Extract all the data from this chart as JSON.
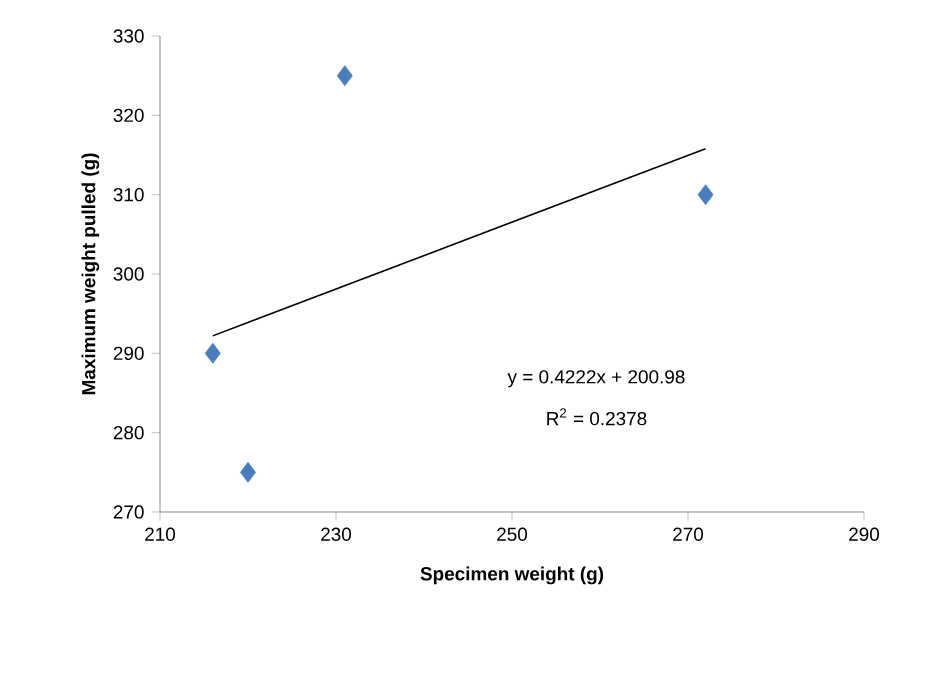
{
  "chart_data": {
    "type": "scatter",
    "xlabel": "Specimen weight (g)",
    "ylabel": "Maximum weight pulled (g)",
    "series": [
      {
        "color": "#4a7ebb",
        "marker": "diamond",
        "x": [
          216,
          220,
          231,
          272
        ],
        "values": [
          290,
          275,
          325,
          310
        ]
      },
      {
        "type": "line",
        "color": "#000000",
        "marker": "none",
        "x": [
          216,
          272
        ],
        "values": [
          292.2,
          315.8
        ],
        "line_style": "solid"
      }
    ],
    "annotations": [
      "y = 0.4222x + 200.98",
      "R$^{2}$ = 0.2378"
    ],
    "xlim": [
      210,
      290
    ],
    "xticks": [
      210,
      230,
      250,
      270,
      290
    ],
    "ylim": [
      270,
      330
    ],
    "yticks": [
      270,
      280,
      290,
      300,
      310,
      320,
      330
    ],
    "grid": false
  }
}
